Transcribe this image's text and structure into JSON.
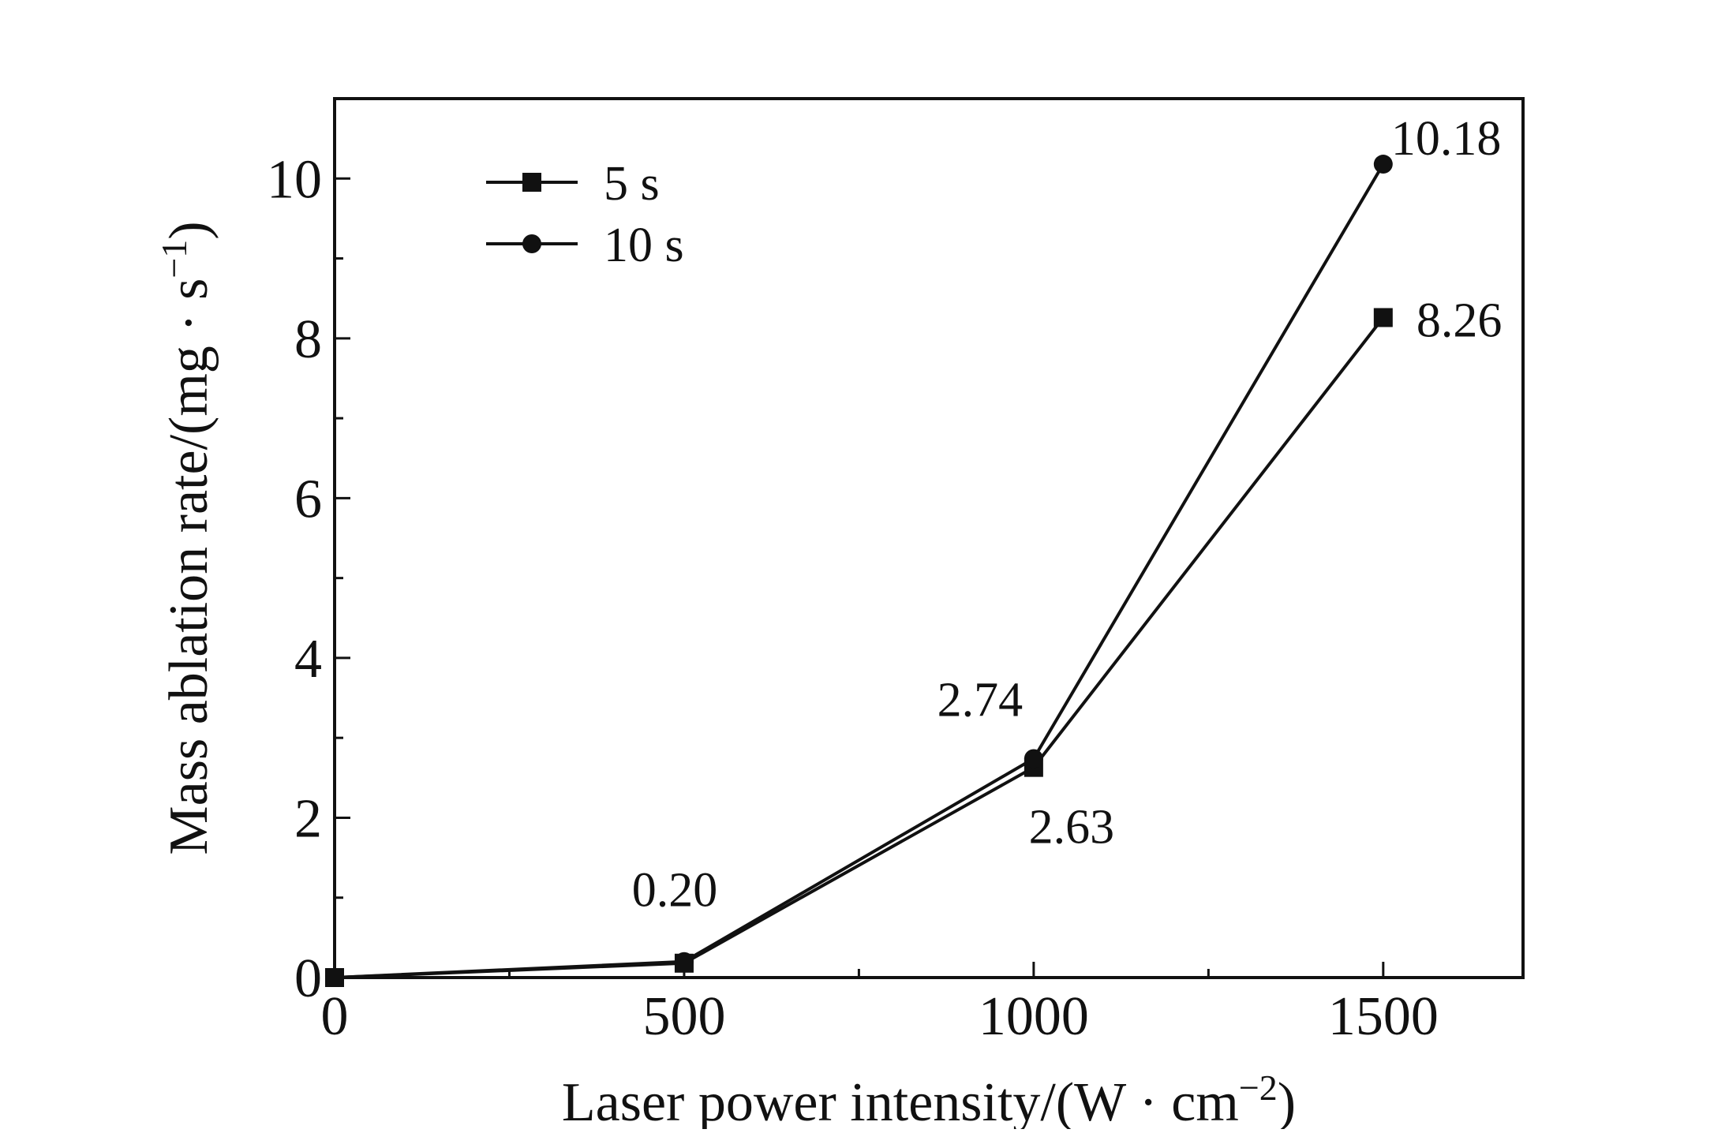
{
  "chart_data": {
    "type": "line",
    "xlabel": "Laser power intensity/(W · cm",
    "xlabel_sup": "−2",
    "xlabel_end": ")",
    "ylabel": "Mass ablation rate/(mg · s",
    "ylabel_sup": "−1",
    "ylabel_end": ")",
    "xlim": [
      0,
      1700
    ],
    "ylim": [
      0,
      11
    ],
    "x_ticks": [
      0,
      500,
      1000,
      1500
    ],
    "x_tick_labels": [
      "0",
      "500",
      "1000",
      "1500"
    ],
    "y_ticks": [
      0,
      2,
      4,
      6,
      8,
      10
    ],
    "y_tick_labels": [
      "0",
      "2",
      "4",
      "6",
      "8",
      "10"
    ],
    "legend_position": "top-left",
    "grid": false,
    "series": [
      {
        "name": "5 s",
        "marker": "square",
        "x": [
          0,
          500,
          1000,
          1500
        ],
        "values": [
          0,
          0.18,
          2.63,
          8.26
        ]
      },
      {
        "name": "10 s",
        "marker": "circle",
        "x": [
          0,
          500,
          1000,
          1500
        ],
        "values": [
          0,
          0.2,
          2.74,
          10.18
        ]
      }
    ],
    "annotations": [
      {
        "text": "0.20",
        "x": 500,
        "y": 0.2
      },
      {
        "text": "2.74",
        "x": 1000,
        "y": 2.74
      },
      {
        "text": "2.63",
        "x": 1000,
        "y": 2.63
      },
      {
        "text": "10.18",
        "x": 1500,
        "y": 10.18
      },
      {
        "text": "8.26",
        "x": 1500,
        "y": 8.26
      }
    ]
  }
}
